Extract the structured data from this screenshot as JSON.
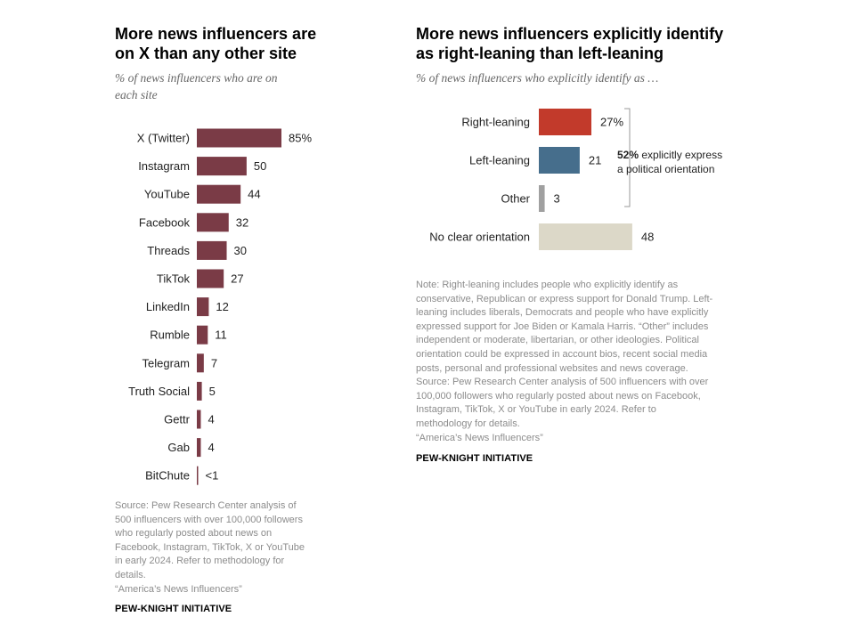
{
  "colors": {
    "left_bars": "#7a3b46",
    "right_leaning": "#c23a2b",
    "left_leaning": "#466e8c",
    "other": "#a0a0a0",
    "no_clear": "#dcd8c8"
  },
  "left": {
    "title_lines": [
      "More news influencers are",
      "on X than any other site"
    ],
    "subtitle_lines": [
      "% of news influencers who are on",
      "each site"
    ],
    "note_lines": [
      "Source: Pew Research Center analysis of",
      "500 influencers with over 100,000 followers",
      "who regularly posted about news on",
      "Facebook, Instagram, TikTok, X or YouTube",
      "in early 2024. Refer to methodology for",
      "details.",
      "“America’s News Influencers”"
    ],
    "brand": "PEW-KNIGHT INITIATIVE"
  },
  "right": {
    "title_lines": [
      "More news influencers explicitly identify",
      "as right-leaning than left-leaning"
    ],
    "subtitle": "% of news influencers who explicitly identify as …",
    "annotation_bold": "52%",
    "annotation_rest_line1": " explicitly express",
    "annotation_line2": "a political orientation",
    "note_lines": [
      "Note: Right-leaning includes people who explicitly identify as",
      "conservative, Republican or express support for Donald Trump. Left-",
      "leaning includes liberals, Democrats and people who have explicitly",
      "expressed support for Joe Biden or Kamala Harris. “Other” includes",
      "independent or moderate, libertarian, or other ideologies. Political",
      "orientation could be expressed in account bios, recent social media",
      "posts, personal and professional websites and news coverage.",
      "Source: Pew Research Center analysis of 500 influencers with over",
      "100,000 followers who regularly posted about news on Facebook,",
      "Instagram, TikTok, X or YouTube in early 2024. Refer to",
      "methodology for details.",
      "“America’s News Influencers”"
    ],
    "brand": "PEW-KNIGHT INITIATIVE"
  },
  "chart_data": [
    {
      "type": "bar",
      "orientation": "horizontal",
      "title": "More news influencers are on X than any other site",
      "subtitle": "% of news influencers who are on each site",
      "categories": [
        "X (Twitter)",
        "Instagram",
        "YouTube",
        "Facebook",
        "Threads",
        "TikTok",
        "LinkedIn",
        "Rumble",
        "Telegram",
        "Truth Social",
        "Gettr",
        "Gab",
        "BitChute"
      ],
      "values": [
        85,
        50,
        44,
        32,
        30,
        27,
        12,
        11,
        7,
        5,
        4,
        4,
        0.5
      ],
      "value_labels": [
        "85%",
        "50",
        "44",
        "32",
        "30",
        "27",
        "12",
        "11",
        "7",
        "5",
        "4",
        "4",
        "<1"
      ]
    },
    {
      "type": "bar",
      "orientation": "horizontal",
      "title": "More news influencers explicitly identify as right-leaning than left-leaning",
      "subtitle": "% of news influencers who explicitly identify as …",
      "categories": [
        "Right-leaning",
        "Left-leaning",
        "Other",
        "No clear orientation"
      ],
      "values": [
        27,
        21,
        3,
        48
      ],
      "value_labels": [
        "27%",
        "21",
        "3",
        "48"
      ]
    }
  ]
}
